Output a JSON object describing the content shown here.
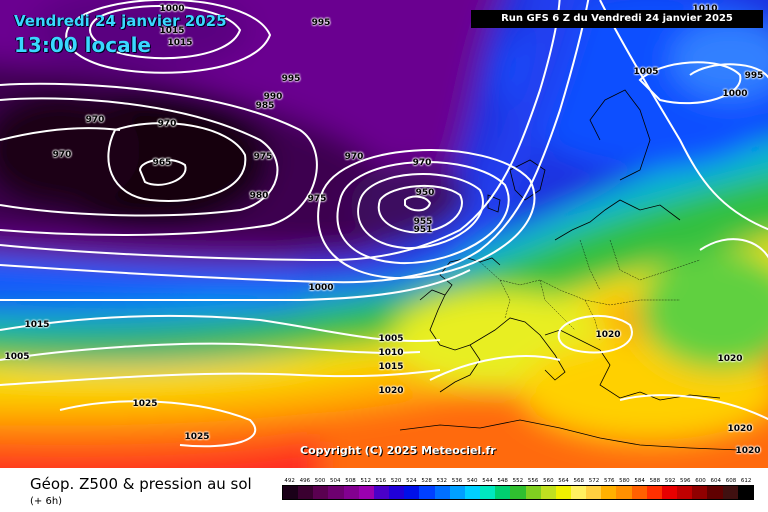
{
  "title_date": "Vendredi 24 janvier 2025",
  "title_time": "13:00 locale",
  "run_info": "Run GFS 6 Z du Vendredi 24 janvier 2025",
  "copyright": "Copyright (C) 2025 Meteociel.fr",
  "footer": {
    "title": "Géop. Z500 & pression au sol",
    "subtitle": "(+ 6h)"
  },
  "scale": {
    "labels": [
      "492",
      "496",
      "500",
      "504",
      "508",
      "512",
      "516",
      "520",
      "524",
      "528",
      "532",
      "536",
      "540",
      "544",
      "548",
      "552",
      "556",
      "560",
      "564",
      "568",
      "572",
      "576",
      "580",
      "584",
      "588",
      "592",
      "596",
      "600",
      "604",
      "608",
      "612"
    ],
    "colors": [
      "#1a0018",
      "#3a0030",
      "#5a0050",
      "#6e0070",
      "#820090",
      "#9a00b0",
      "#4a00c8",
      "#2000d8",
      "#0010e8",
      "#0040ff",
      "#0070ff",
      "#00a0ff",
      "#00d0ff",
      "#00e8c0",
      "#00d070",
      "#30c030",
      "#80d020",
      "#c0e020",
      "#f0f000",
      "#fff060",
      "#ffd040",
      "#ffb000",
      "#ff9000",
      "#ff6000",
      "#ff3000",
      "#e80000",
      "#c00000",
      "#900000",
      "#600000",
      "#401010",
      "#000000"
    ]
  },
  "isobar_labels": [
    {
      "text": "1000"
    },
    {
      "text": "1015"
    },
    {
      "text": "995"
    },
    {
      "text": "1015"
    },
    {
      "text": "995"
    },
    {
      "text": "990"
    },
    {
      "text": "985"
    },
    {
      "text": "970"
    },
    {
      "text": "970"
    },
    {
      "text": "970"
    },
    {
      "text": "965"
    },
    {
      "text": "975"
    },
    {
      "text": "970"
    },
    {
      "text": "970"
    },
    {
      "text": "980"
    },
    {
      "text": "975"
    },
    {
      "text": "950"
    },
    {
      "text": "955"
    },
    {
      "text": "951"
    },
    {
      "text": "1000"
    },
    {
      "text": "1015"
    },
    {
      "text": "1005"
    },
    {
      "text": "1005"
    },
    {
      "text": "1010"
    },
    {
      "text": "1015"
    },
    {
      "text": "1020"
    },
    {
      "text": "1025"
    },
    {
      "text": "1025"
    },
    {
      "text": "1020"
    },
    {
      "text": "1020"
    },
    {
      "text": "1020"
    },
    {
      "text": "1020"
    },
    {
      "text": "1005"
    },
    {
      "text": "995"
    },
    {
      "text": "1000"
    },
    {
      "text": "1010"
    }
  ]
}
